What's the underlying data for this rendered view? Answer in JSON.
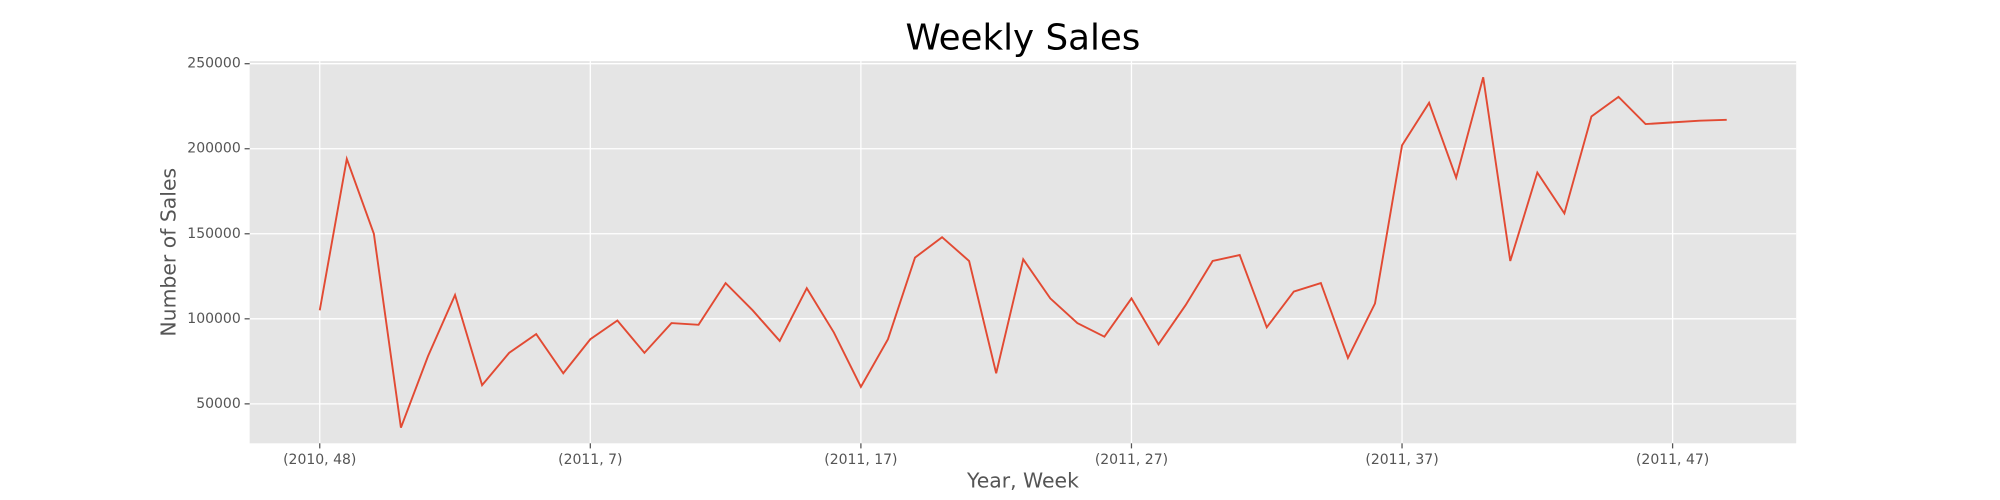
{
  "chart_data": {
    "type": "line",
    "title": "Weekly Sales",
    "x_label": "Year, Week",
    "y_label": "Number of Sales",
    "categories": [
      "(2010, 48)",
      null,
      null,
      null,
      null,
      null,
      null,
      null,
      null,
      null,
      "(2011, 7)",
      null,
      null,
      null,
      null,
      null,
      null,
      null,
      null,
      null,
      "(2011, 17)",
      null,
      null,
      null,
      null,
      null,
      null,
      null,
      null,
      null,
      "(2011, 27)",
      null,
      null,
      null,
      null,
      null,
      null,
      null,
      null,
      null,
      "(2011, 37)",
      null,
      null,
      null,
      null,
      null,
      null,
      null,
      null,
      null,
      "(2011, 47)",
      null,
      null
    ],
    "series": [
      {
        "name": "Sales",
        "color": "#E24A33",
        "values": [
          105000,
          194000,
          150000,
          36000,
          78000,
          114000,
          61000,
          80000,
          91000,
          68000,
          88000,
          99000,
          80000,
          97500,
          96500,
          121000,
          105000,
          87000,
          118000,
          92000,
          60000,
          88000,
          136000,
          148000,
          134000,
          68000,
          135000,
          112000,
          97500,
          89500,
          112000,
          85000,
          108000,
          134000,
          137500,
          95000,
          116000,
          121000,
          77000,
          109000,
          202000,
          227000,
          183000,
          242000,
          134000,
          186000,
          162000,
          219000,
          230500,
          214500,
          215500,
          216500,
          217000
        ]
      }
    ],
    "ylim": [
      26800,
      251500
    ],
    "yticks": [
      50000,
      100000,
      150000,
      200000,
      250000
    ],
    "grid": true
  }
}
